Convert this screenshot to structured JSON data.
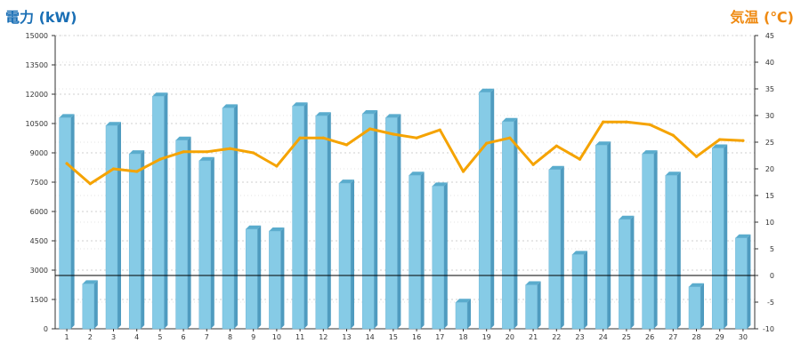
{
  "titles": {
    "left_axis_title": "電力 (kW)",
    "right_axis_title": "気温 (℃)"
  },
  "colors": {
    "bar_front": "#86cbe6",
    "bar_side": "#4f9bbf",
    "bar_top": "#5aaccd",
    "line": "#f5a300",
    "grid": "#cfcfcf",
    "axis": "#333333",
    "reference_line": "#000000",
    "left_title": "#1a6fb5",
    "right_title": "#ef8a12"
  },
  "chart_data": {
    "type": "bar",
    "categories": [
      "1",
      "2",
      "3",
      "4",
      "5",
      "6",
      "7",
      "8",
      "9",
      "10",
      "11",
      "12",
      "13",
      "14",
      "15",
      "16",
      "17",
      "18",
      "19",
      "20",
      "21",
      "22",
      "23",
      "24",
      "25",
      "26",
      "27",
      "28",
      "29",
      "30"
    ],
    "series": [
      {
        "axis": "left",
        "type": "bar",
        "values": [
          10800,
          2300,
          10400,
          8950,
          11900,
          9650,
          8600,
          11300,
          5100,
          5000,
          11400,
          10900,
          7450,
          11000,
          10800,
          7850,
          7300,
          1350,
          12100,
          10600,
          2250,
          8150,
          3800,
          9400,
          5600,
          8950,
          7850,
          2150,
          9250,
          4650
        ]
      },
      {
        "axis": "right",
        "type": "line",
        "values": [
          21.0,
          17.2,
          20.0,
          19.5,
          21.8,
          23.2,
          23.2,
          23.8,
          23.0,
          20.5,
          25.8,
          25.8,
          24.5,
          27.5,
          26.5,
          25.8,
          27.3,
          19.5,
          24.8,
          25.8,
          20.8,
          24.3,
          21.8,
          28.8,
          28.8,
          28.3,
          26.3,
          22.3,
          25.5,
          25.3
        ]
      }
    ],
    "y_left": {
      "ylim": [
        0,
        15000
      ],
      "ticks": [
        "0",
        "1500",
        "3000",
        "4500",
        "6000",
        "7500",
        "9000",
        "10500",
        "12000",
        "13500",
        "15000"
      ]
    },
    "y_right": {
      "ylim": [
        -10,
        45
      ],
      "ticks": [
        "-10",
        "-5",
        "0",
        "5",
        "10",
        "15",
        "20",
        "25",
        "30",
        "35",
        "40",
        "45"
      ]
    },
    "reference_line_right_value": 0,
    "grid": true
  }
}
